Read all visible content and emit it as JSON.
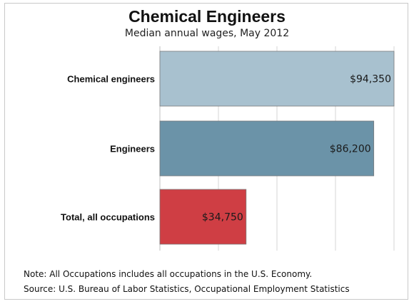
{
  "chart_data": {
    "type": "bar",
    "orientation": "horizontal",
    "title": "Chemical Engineers",
    "subtitle": "Median annual wages, May 2012",
    "categories": [
      "Chemical engineers",
      "Engineers",
      "Total, all occupations"
    ],
    "values": [
      94350,
      86200,
      34750
    ],
    "value_labels": [
      "$94,350",
      "$86,200",
      "$34,750"
    ],
    "colors": [
      "#a8c1cf",
      "#6b93a8",
      "#cf3e44"
    ],
    "xlim": [
      0,
      94350
    ],
    "grid": true,
    "xlabel": "",
    "ylabel": ""
  },
  "notes": {
    "note": "Note: All Occupations includes all occupations in the U.S. Economy.",
    "source": "Source: U.S. Bureau of Labor Statistics, Occupational Employment Statistics"
  }
}
